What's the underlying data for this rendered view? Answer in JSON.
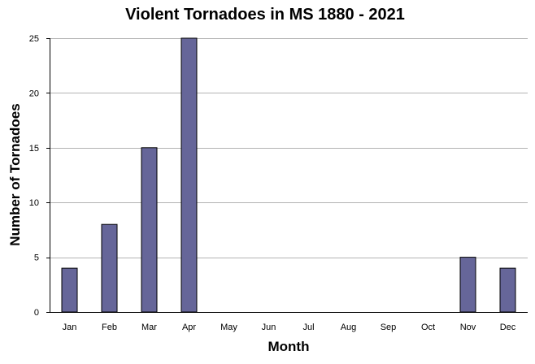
{
  "chart_data": {
    "type": "bar",
    "title": "Violent Tornadoes in MS 1880 - 2021",
    "xlabel": "Month",
    "ylabel": "Number of Tornadoes",
    "categories": [
      "Jan",
      "Feb",
      "Mar",
      "Apr",
      "May",
      "Jun",
      "Jul",
      "Aug",
      "Sep",
      "Oct",
      "Nov",
      "Dec"
    ],
    "values": [
      4,
      8,
      15,
      25,
      0,
      0,
      0,
      0,
      0,
      0,
      5,
      4
    ],
    "ylim": [
      0,
      25
    ],
    "yticks": [
      0,
      5,
      10,
      15,
      20,
      25
    ],
    "grid": true,
    "legend": "none",
    "colors": {
      "bar_fill": "#666699",
      "bar_stroke": "#000000",
      "grid": "#b3b3b3",
      "axis": "#000000"
    }
  }
}
